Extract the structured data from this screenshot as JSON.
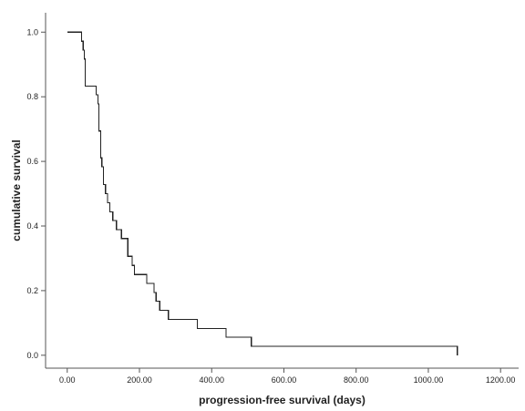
{
  "chart_data": {
    "type": "line",
    "subtype": "step",
    "title": "",
    "xlabel": "progression-free survival (days)",
    "ylabel": "cumulative survival",
    "xlim": [
      -60,
      1250
    ],
    "ylim": [
      -0.04,
      1.06
    ],
    "x_ticks": [
      0,
      200,
      400,
      600,
      800,
      1000,
      1200
    ],
    "x_tick_labels": [
      "0.00",
      "200.00",
      "400.00",
      "600.00",
      "800.00",
      "1000.00",
      "1200.00"
    ],
    "y_ticks": [
      0.0,
      0.2,
      0.4,
      0.6,
      0.8,
      1.0
    ],
    "y_tick_labels": [
      "0.0",
      "0.2",
      "0.4",
      "0.6",
      "0.8",
      "1.0"
    ],
    "grid": false,
    "line_color": "#222222",
    "series": [
      {
        "x": [
          0,
          40,
          44,
          47,
          50,
          80,
          85,
          88,
          93,
          96,
          100,
          106,
          112,
          118,
          126,
          136,
          150,
          168,
          180,
          186,
          220,
          240,
          246,
          256,
          280,
          360,
          440,
          510,
          1080,
          1080
        ],
        "y": [
          1.0,
          0.972,
          0.944,
          0.917,
          0.833,
          0.806,
          0.778,
          0.694,
          0.611,
          0.583,
          0.528,
          0.5,
          0.472,
          0.444,
          0.417,
          0.389,
          0.361,
          0.306,
          0.278,
          0.25,
          0.222,
          0.194,
          0.167,
          0.139,
          0.111,
          0.083,
          0.056,
          0.028,
          0.028,
          0.0
        ]
      }
    ]
  }
}
